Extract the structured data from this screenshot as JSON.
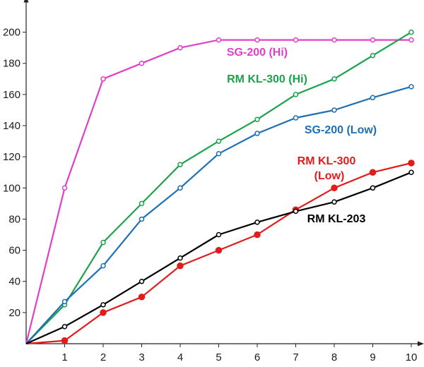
{
  "chart_data": {
    "type": "line",
    "title": "",
    "xlabel": "",
    "ylabel": "",
    "xlim": [
      0,
      10
    ],
    "ylim": [
      0,
      220
    ],
    "x_ticks": [
      1,
      2,
      3,
      4,
      5,
      6,
      7,
      8,
      9,
      10
    ],
    "y_ticks": [
      20,
      40,
      60,
      80,
      100,
      120,
      140,
      160,
      180,
      200
    ],
    "grid": false,
    "legend": "none",
    "x": [
      0,
      1,
      2,
      3,
      4,
      5,
      6,
      7,
      8,
      9,
      10
    ],
    "series": [
      {
        "name": "SG-200 (Hi)",
        "label_lines": [
          "SG-200 (Hi)"
        ],
        "color": "#e040c8",
        "marker": "open",
        "values": [
          0,
          100,
          170,
          180,
          190,
          195,
          195,
          195,
          195,
          195,
          195
        ]
      },
      {
        "name": "RM KL-300 (Hi)",
        "label_lines": [
          "RM KL-300 (Hi)"
        ],
        "color": "#1aa34a",
        "marker": "open",
        "values": [
          0,
          25,
          65,
          90,
          115,
          130,
          144,
          160,
          170,
          185,
          200
        ]
      },
      {
        "name": "SG-200 (Low)",
        "label_lines": [
          "SG-200 (Low)"
        ],
        "color": "#1f6fb4",
        "marker": "open",
        "values": [
          0,
          27,
          50,
          80,
          100,
          122,
          135,
          145,
          150,
          158,
          165
        ]
      },
      {
        "name": "RM KL-300 (Low)",
        "label_lines": [
          "RM KL-300",
          "(Low)"
        ],
        "color": "#e21b1b",
        "marker": "filled",
        "values": [
          0,
          2,
          20,
          30,
          50,
          60,
          70,
          86,
          100,
          110,
          116
        ]
      },
      {
        "name": "RM KL-203",
        "label_lines": [
          "RM KL-203"
        ],
        "color": "#000000",
        "marker": "open",
        "values": [
          0,
          11,
          25,
          40,
          55,
          70,
          78,
          85,
          91,
          100,
          110
        ]
      }
    ]
  }
}
